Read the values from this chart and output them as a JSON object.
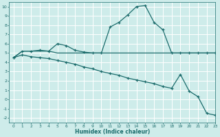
{
  "xlabel": "Humidex (Indice chaleur)",
  "bg_color": "#ceecea",
  "grid_color": "#ffffff",
  "line_color": "#1a6b6b",
  "xlim": [
    -0.5,
    23
  ],
  "ylim": [
    -2.5,
    10.5
  ],
  "xticks": [
    0,
    1,
    2,
    3,
    4,
    5,
    6,
    7,
    8,
    9,
    10,
    11,
    12,
    13,
    14,
    15,
    16,
    17,
    18,
    19,
    20,
    21,
    22,
    23
  ],
  "yticks": [
    -2,
    -1,
    0,
    1,
    2,
    3,
    4,
    5,
    6,
    7,
    8,
    9,
    10
  ],
  "line1_x": [
    0,
    1,
    2,
    3,
    4,
    5,
    6,
    7,
    8,
    9,
    10,
    11,
    12,
    13,
    14,
    15,
    16,
    17,
    18,
    19,
    20,
    21,
    22,
    23
  ],
  "line1_y": [
    4.5,
    5.2,
    5.2,
    5.2,
    5.2,
    5.0,
    5.0,
    5.0,
    5.0,
    5.0,
    5.0,
    5.0,
    5.0,
    5.0,
    5.0,
    5.0,
    5.0,
    5.0,
    5.0,
    5.0,
    5.0,
    5.0,
    5.0,
    5.0
  ],
  "line2_x": [
    0,
    1,
    2,
    3,
    4,
    5,
    6,
    7,
    8,
    9,
    10,
    11,
    12,
    13,
    14,
    15,
    16,
    17,
    18,
    19,
    20,
    21,
    22,
    23
  ],
  "line2_y": [
    4.5,
    5.2,
    5.2,
    5.3,
    5.2,
    6.0,
    5.8,
    5.3,
    5.1,
    5.0,
    5.0,
    7.8,
    8.3,
    9.1,
    10.0,
    10.1,
    8.3,
    7.5,
    5.0,
    5.0,
    5.0,
    5.0,
    5.0,
    5.0
  ],
  "line3_x": [
    0,
    1,
    2,
    3,
    4,
    5,
    6,
    7,
    8,
    9,
    10,
    11,
    12,
    13,
    14,
    15,
    16,
    17,
    18,
    19,
    20,
    21,
    22,
    23
  ],
  "line3_y": [
    4.5,
    4.8,
    4.6,
    4.5,
    4.4,
    4.2,
    4.0,
    3.8,
    3.5,
    3.3,
    3.0,
    2.8,
    2.6,
    2.3,
    2.1,
    1.9,
    1.7,
    1.4,
    1.2,
    2.7,
    0.9,
    0.3,
    -1.5,
    -1.7
  ]
}
